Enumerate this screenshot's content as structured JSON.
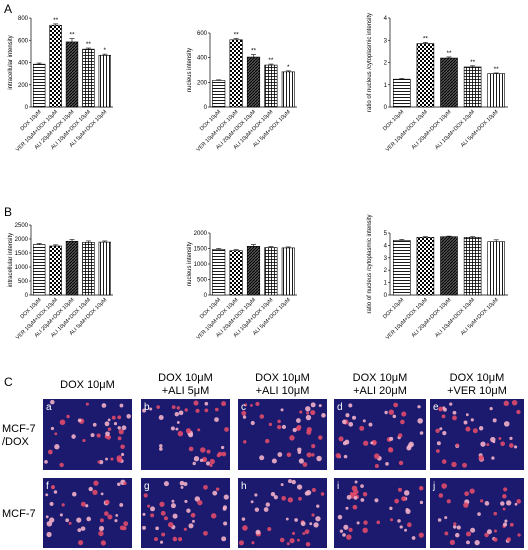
{
  "panels": {
    "A": "A",
    "B": "B",
    "C": "C"
  },
  "chart_data": [
    {
      "id": "A1",
      "type": "bar",
      "ylabel": "intracellular intensity",
      "ylim": [
        0,
        800
      ],
      "yticks": [
        0,
        200,
        400,
        600,
        800
      ],
      "categories": [
        "DOX 10μM",
        "VER 10μM+DOX 10μM",
        "ALI 20μM+DOX 10μM",
        "ALI 10μM+DOX 10μM",
        "ALI 5μM+DOX 10μM"
      ],
      "values": [
        385,
        735,
        585,
        520,
        465
      ],
      "errors": [
        10,
        12,
        30,
        10,
        10
      ],
      "annotations": [
        "",
        "**",
        "**",
        "**",
        "*"
      ]
    },
    {
      "id": "A2",
      "type": "bar",
      "ylabel": "nucleus intensity",
      "ylim": [
        0,
        600
      ],
      "yticks": [
        0,
        200,
        400,
        600
      ],
      "categories": [
        "DOX 10μM",
        "VER 10μM+DOX 10μM",
        "ALI 20μM+DOX 10μM",
        "ALI 10μM+DOX 10μM",
        "ALI 5μM+DOX 10μM"
      ],
      "values": [
        215,
        545,
        405,
        340,
        285
      ],
      "errors": [
        5,
        10,
        20,
        8,
        8
      ],
      "annotations": [
        "",
        "**",
        "**",
        "**",
        "*"
      ]
    },
    {
      "id": "A3",
      "type": "bar",
      "ylabel": "ratio of nucleus /cytoplasmic intensity",
      "ylim": [
        0,
        4
      ],
      "yticks": [
        0,
        1,
        2,
        3,
        4
      ],
      "categories": [
        "DOX 10μM",
        "VER 10μM+DOX 10μM",
        "ALI 20μM+DOX 10μM",
        "ALI 10μM+DOX 10μM",
        "ALI 5μM+DOX 10μM"
      ],
      "values": [
        1.25,
        2.85,
        2.2,
        1.8,
        1.5
      ],
      "errors": [
        0.03,
        0.05,
        0.05,
        0.05,
        0.03
      ],
      "annotations": [
        "",
        "**",
        "**",
        "**",
        "**"
      ]
    },
    {
      "id": "B1",
      "type": "bar",
      "ylabel": "intracellular intensity",
      "ylim": [
        0,
        2500
      ],
      "yticks": [
        0,
        500,
        1000,
        1500,
        2000,
        2500
      ],
      "categories": [
        "DOX 10μM",
        "VER 10μM+DOX 10μM",
        "ALI 20μM+DOX 10μM",
        "ALI 10μM+DOX 10μM",
        "ALI 5μM+DOX 10μM"
      ],
      "values": [
        1800,
        1750,
        1920,
        1880,
        1890
      ],
      "errors": [
        40,
        40,
        60,
        50,
        40
      ],
      "annotations": [
        "",
        "",
        "",
        "",
        ""
      ]
    },
    {
      "id": "B2",
      "type": "bar",
      "ylabel": "nucleus intensity",
      "ylim": [
        0,
        2000
      ],
      "yticks": [
        0,
        500,
        1000,
        1500,
        2000
      ],
      "categories": [
        "DOX 10μM",
        "VER 10μM+DOX 10μM",
        "ALI 20μM+DOX 10μM",
        "ALI 10μM+DOX 10μM",
        "ALI 5μM+DOX 10μM"
      ],
      "values": [
        1470,
        1430,
        1570,
        1530,
        1520
      ],
      "errors": [
        30,
        30,
        60,
        30,
        30
      ],
      "annotations": [
        "",
        "",
        "",
        "",
        ""
      ]
    },
    {
      "id": "B3",
      "type": "bar",
      "ylabel": "ratio of nucleus /cytoplasmic intensity",
      "ylim": [
        0,
        5
      ],
      "yticks": [
        0,
        1,
        2,
        3,
        4,
        5
      ],
      "categories": [
        "DOX 10μM",
        "VER 10μM+DOX 10μM",
        "ALI 20μM+DOX 10μM",
        "ALI 10μM+DOX 10μM",
        "ALI 5μM+DOX 10μM"
      ],
      "values": [
        4.4,
        4.65,
        4.7,
        4.65,
        4.3
      ],
      "errors": [
        0.08,
        0.05,
        0.05,
        0.05,
        0.15
      ],
      "annotations": [
        "",
        "",
        "",
        "",
        ""
      ]
    }
  ],
  "micrographs": {
    "columns": [
      [
        "DOX 10μM"
      ],
      [
        "DOX 10μM",
        "+ALI 5μM"
      ],
      [
        "DOX 10μM",
        "+ALI 10μM"
      ],
      [
        "DOX 10μM",
        "+ALI 20μM"
      ],
      [
        "DOX 10μM",
        "+VER 10μM"
      ]
    ],
    "rows": [
      {
        "label": [
          "MCF-7",
          "/DOX"
        ],
        "cells": [
          "a",
          "b",
          "c",
          "d",
          "e"
        ]
      },
      {
        "label": [
          "MCF-7"
        ],
        "cells": [
          "f",
          "g",
          "h",
          "i",
          "j"
        ]
      }
    ]
  },
  "colors": {
    "micrograph_bg": "#1c1a6e",
    "cell_red": "#e04a6a",
    "cell_pink": "#f2b0c8"
  }
}
